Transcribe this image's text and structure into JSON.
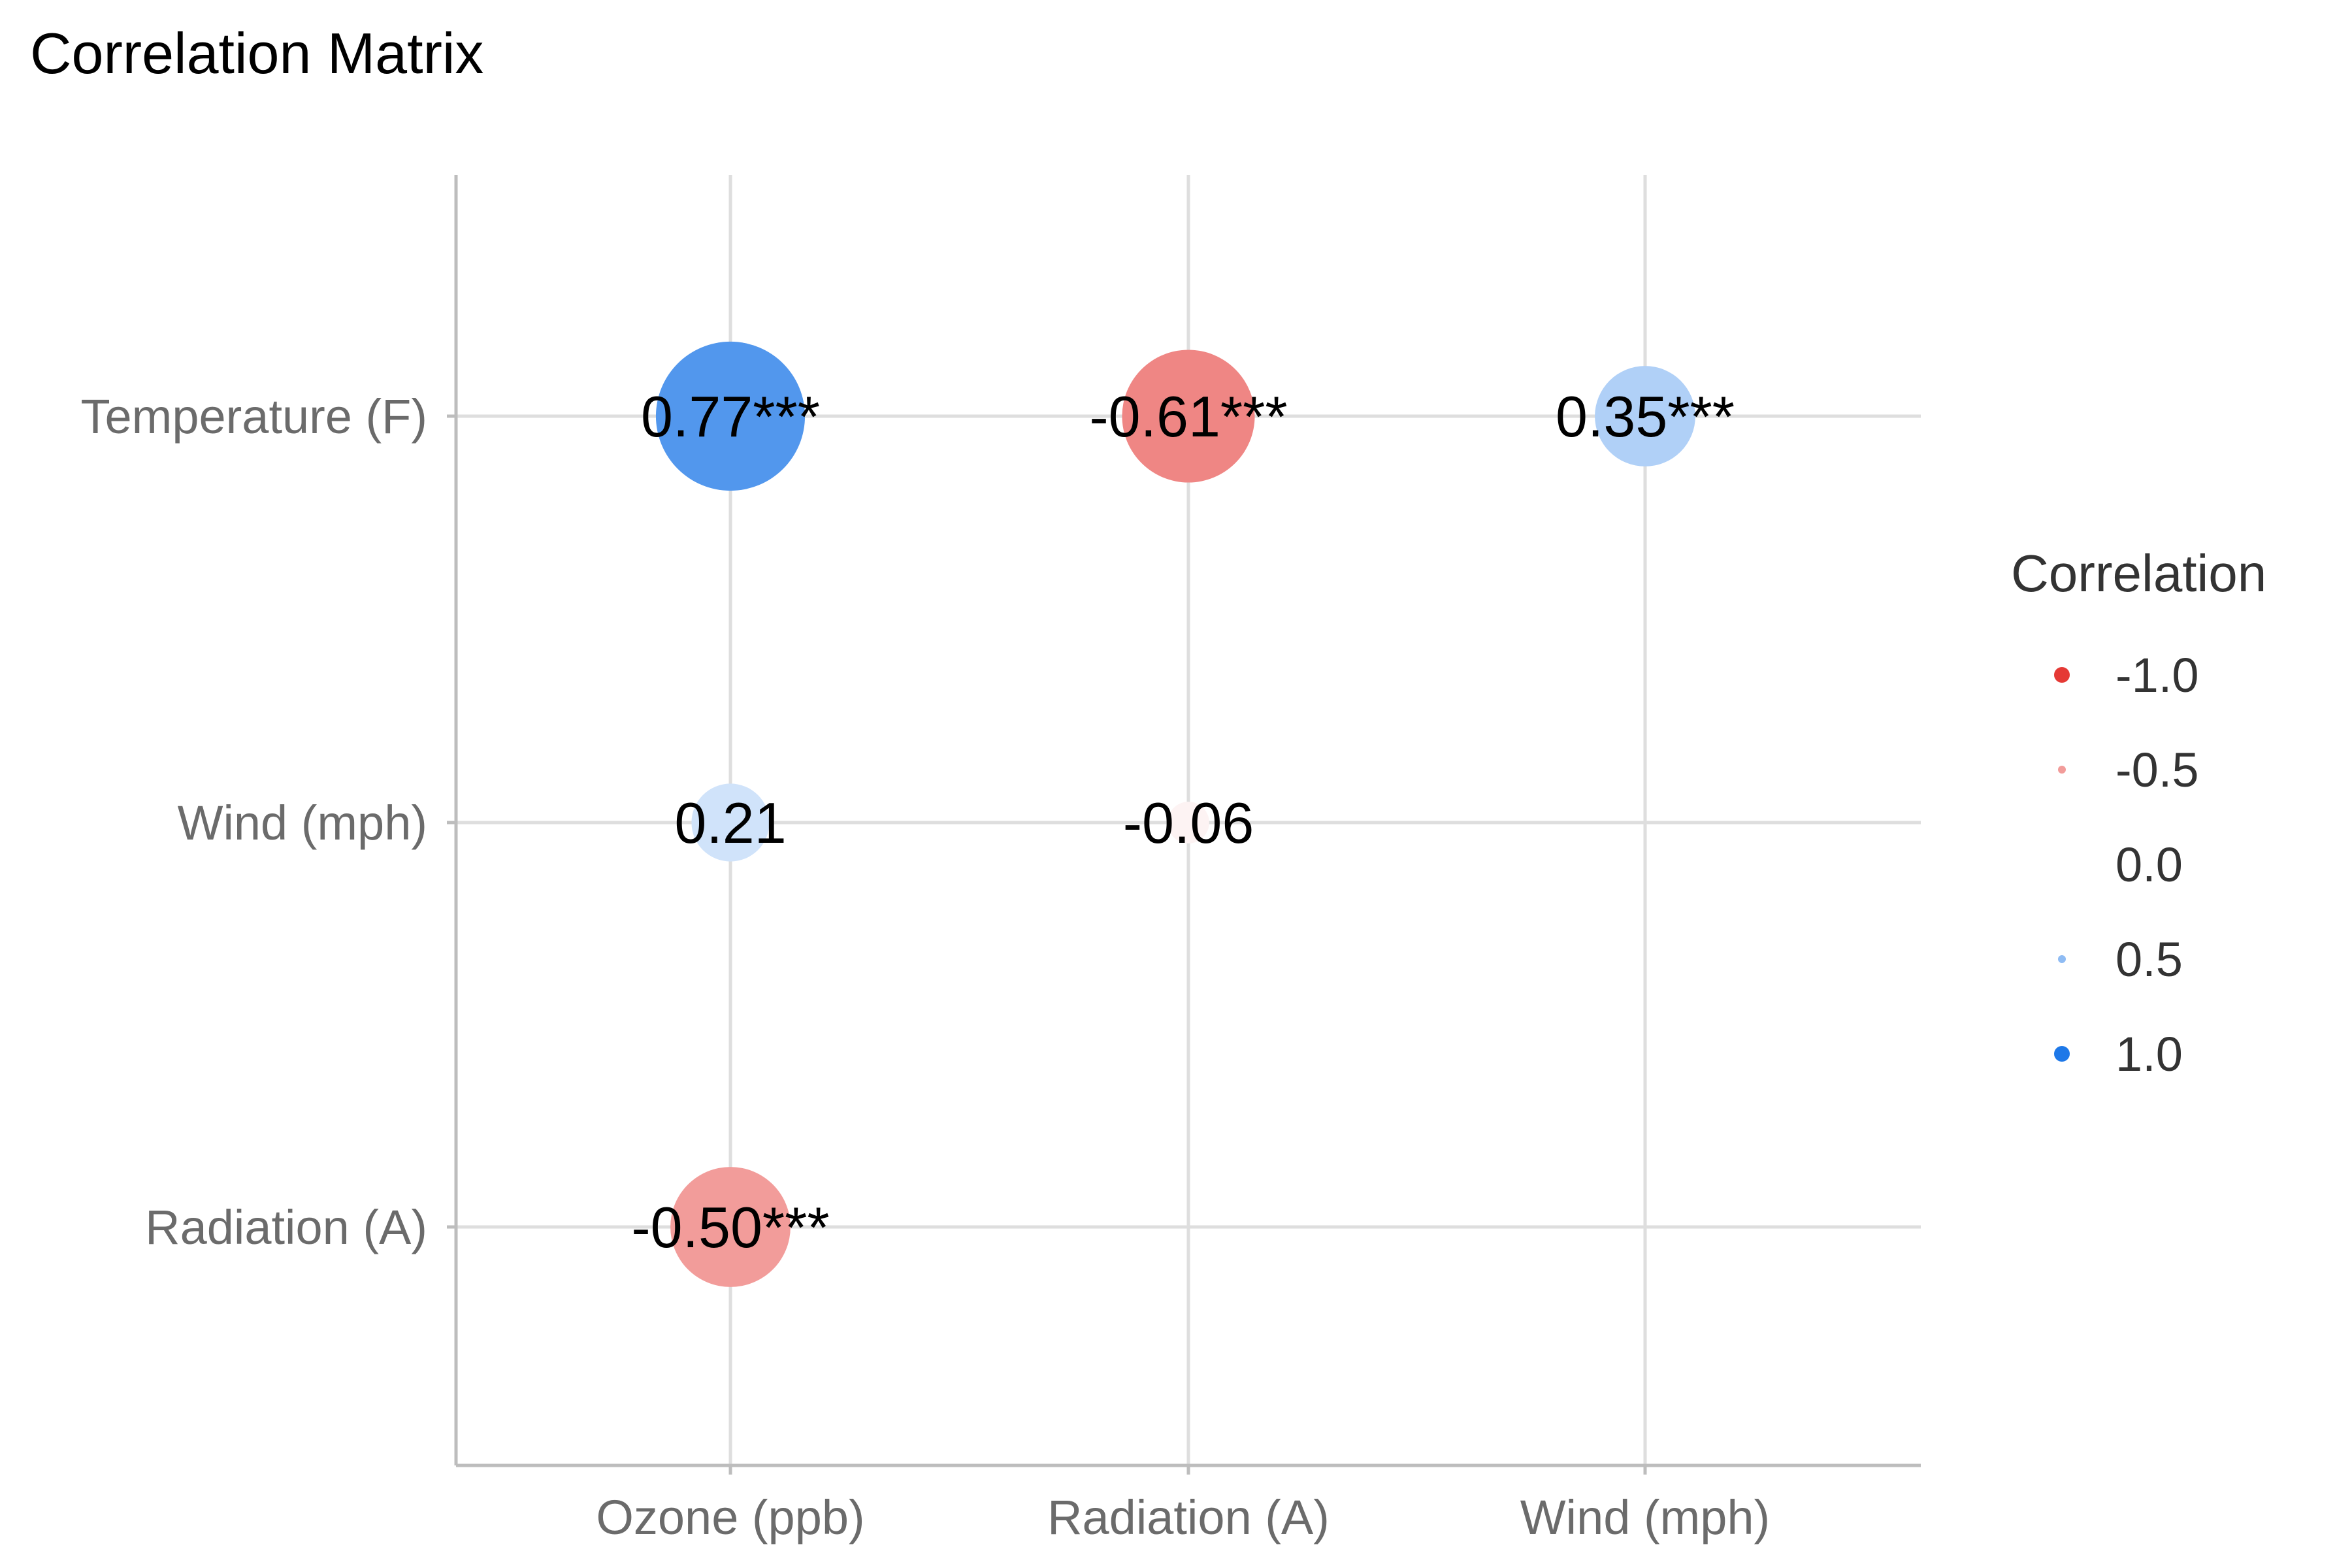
{
  "chart_data": {
    "type": "scatter",
    "title": "Correlation Matrix",
    "x_categories": [
      "Ozone (ppb)",
      "Radiation (A)",
      "Wind (mph)"
    ],
    "y_categories": [
      "Temperature (F)",
      "Wind (mph)",
      "Radiation (A)"
    ],
    "cells": [
      {
        "x": "Ozone (ppb)",
        "y": "Temperature (F)",
        "value": 0.77,
        "label": "0.77***"
      },
      {
        "x": "Radiation (A)",
        "y": "Temperature (F)",
        "value": -0.61,
        "label": "-0.61***"
      },
      {
        "x": "Wind (mph)",
        "y": "Temperature (F)",
        "value": 0.35,
        "label": "0.35***"
      },
      {
        "x": "Ozone (ppb)",
        "y": "Wind (mph)",
        "value": 0.21,
        "label": "0.21"
      },
      {
        "x": "Radiation (A)",
        "y": "Wind (mph)",
        "value": -0.06,
        "label": "-0.06"
      },
      {
        "x": "Ozone (ppb)",
        "y": "Radiation (A)",
        "value": -0.5,
        "label": "-0.50***"
      }
    ],
    "legend": {
      "title": "Correlation",
      "placement": "right",
      "entries": [
        {
          "label": "-1.0",
          "value": -1.0
        },
        {
          "label": "-0.5",
          "value": -0.5
        },
        {
          "label": "0.0",
          "value": 0.0
        },
        {
          "label": "0.5",
          "value": 0.5
        },
        {
          "label": "1.0",
          "value": 1.0
        }
      ]
    },
    "colors": {
      "negative": "#e53935",
      "zero": "#ffffff",
      "positive": "#1e78e8"
    },
    "grid": true
  }
}
